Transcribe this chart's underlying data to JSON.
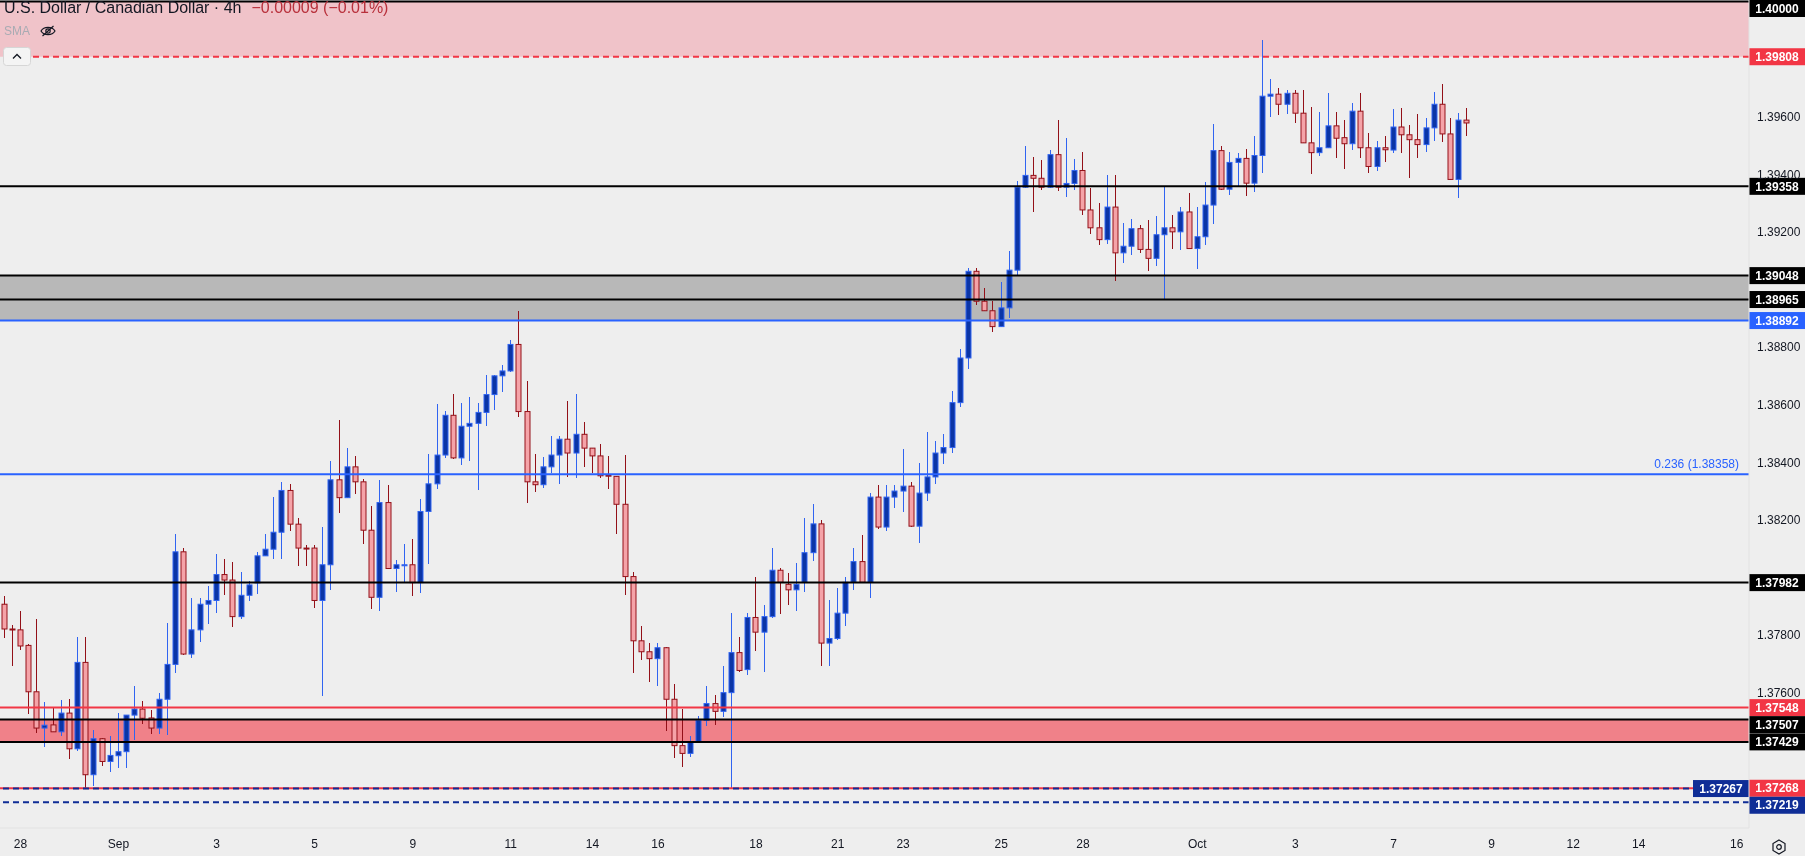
{
  "chart_data": {
    "type": "candlestick",
    "title": "U.S. Dollar / Canadian Dollar · 4h",
    "subtitle": "−0.00009 (−0.01%)",
    "annotations": [
      "SMA",
      {
        "text": "0.236 (1.38358)",
        "y": 1.38358
      }
    ],
    "categories": [
      null,
      null,
      "28",
      null,
      null,
      null,
      null,
      null,
      null,
      null,
      null,
      null,
      null,
      null,
      "Sep",
      null,
      null,
      null,
      null,
      null,
      null,
      null,
      null,
      null,
      null,
      null,
      "3",
      null,
      null,
      null,
      null,
      null,
      null,
      null,
      null,
      null,
      null,
      null,
      "5",
      null,
      null,
      null,
      null,
      null,
      null,
      null,
      null,
      null,
      null,
      null,
      "9",
      null,
      null,
      null,
      null,
      null,
      null,
      null,
      null,
      null,
      null,
      null,
      "11",
      null,
      null,
      null,
      null,
      null,
      null,
      null,
      null,
      null,
      "14",
      null,
      null,
      null,
      null,
      null,
      null,
      null,
      "16",
      null,
      null,
      null,
      null,
      null,
      null,
      null,
      null,
      null,
      null,
      null,
      "18",
      null,
      null,
      null,
      null,
      null,
      null,
      null,
      null,
      null,
      "21",
      null,
      null,
      null,
      null,
      null,
      null,
      null,
      "23",
      null,
      null,
      null,
      null,
      null,
      null,
      null,
      null,
      null,
      null,
      null,
      "25",
      null,
      null,
      null,
      null,
      null,
      null,
      null,
      null,
      null,
      "28",
      null,
      null,
      null,
      null,
      null,
      null,
      null,
      null,
      null,
      null,
      null,
      null,
      null,
      "Oct",
      null,
      null,
      null,
      null,
      null,
      null,
      null,
      null,
      null,
      null,
      null,
      "3",
      null,
      null,
      null,
      null,
      null,
      null,
      null,
      null,
      null,
      null,
      null,
      "7",
      null,
      null,
      null,
      null,
      null,
      null,
      null,
      null,
      null,
      null,
      null,
      "9",
      null,
      null,
      null,
      null,
      null,
      null,
      null,
      null,
      null,
      "12",
      null,
      null,
      null,
      null,
      null,
      null,
      null,
      "14",
      null,
      null,
      null,
      null,
      null,
      null,
      null,
      null,
      null,
      null,
      null,
      "16",
      null
    ],
    "ohlc": [
      [
        1.37907,
        1.37935,
        1.37792,
        1.37821
      ],
      [
        1.37821,
        1.37832,
        1.37696,
        1.37819
      ],
      [
        1.37818,
        1.3788,
        1.3775,
        1.37762
      ],
      [
        1.37764,
        1.37768,
        1.37529,
        1.37603
      ],
      [
        1.37603,
        1.37853,
        1.37463,
        1.37477
      ],
      [
        1.37477,
        1.37565,
        1.37414,
        1.37487
      ],
      [
        1.37488,
        1.37543,
        1.37464,
        1.37464
      ],
      [
        1.37464,
        1.37572,
        1.37452,
        1.37529
      ],
      [
        1.37529,
        1.37575,
        1.37373,
        1.37405
      ],
      [
        1.37405,
        1.37792,
        1.37401,
        1.37705
      ],
      [
        1.37705,
        1.37792,
        1.37267,
        1.37315
      ],
      [
        1.37315,
        1.37468,
        1.37277,
        1.3744
      ],
      [
        1.3744,
        1.3744,
        1.37349,
        1.37361
      ],
      [
        1.37361,
        1.37449,
        1.37328,
        1.37382
      ],
      [
        1.37381,
        1.37527,
        1.37342,
        1.37395
      ],
      [
        1.37395,
        1.37522,
        1.37339,
        1.37522
      ],
      [
        1.37522,
        1.3762,
        1.37438,
        1.37543
      ],
      [
        1.37543,
        1.37568,
        1.37493,
        1.37511
      ],
      [
        1.37512,
        1.37537,
        1.3746,
        1.37477
      ],
      [
        1.37477,
        1.37596,
        1.3746,
        1.37577
      ],
      [
        1.37577,
        1.37839,
        1.37454,
        1.37698
      ],
      [
        1.37698,
        1.38148,
        1.37672,
        1.38089
      ],
      [
        1.38089,
        1.38099,
        1.37734,
        1.37734
      ],
      [
        1.37734,
        1.37925,
        1.37724,
        1.37818
      ],
      [
        1.37818,
        1.37925,
        1.37778,
        1.37907
      ],
      [
        1.37907,
        1.37969,
        1.3784,
        1.3792
      ],
      [
        1.3792,
        1.3808,
        1.3788,
        1.3801
      ],
      [
        1.3801,
        1.38063,
        1.3794,
        1.37991
      ],
      [
        1.37991,
        1.38051,
        1.37829,
        1.37864
      ],
      [
        1.37864,
        1.38018,
        1.37857,
        1.37938
      ],
      [
        1.37938,
        1.37986,
        1.37919,
        1.37974
      ],
      [
        1.37981,
        1.38087,
        1.37945,
        1.38075
      ],
      [
        1.38075,
        1.38148,
        1.38075,
        1.38098
      ],
      [
        1.38098,
        1.38278,
        1.38067,
        1.38157
      ],
      [
        1.38157,
        1.3833,
        1.38067,
        1.38302
      ],
      [
        1.38302,
        1.38323,
        1.38164,
        1.38185
      ],
      [
        1.38185,
        1.38206,
        1.38042,
        1.38102
      ],
      [
        1.38102,
        1.3811,
        1.38042,
        1.381
      ],
      [
        1.38102,
        1.3811,
        1.37897,
        1.3792
      ],
      [
        1.3792,
        1.38172,
        1.3759,
        1.38044
      ],
      [
        1.38044,
        1.38402,
        1.3796,
        1.38339
      ],
      [
        1.38339,
        1.38543,
        1.38227,
        1.38277
      ],
      [
        1.38277,
        1.38447,
        1.38277,
        1.38384
      ],
      [
        1.38384,
        1.38419,
        1.38293,
        1.38332
      ],
      [
        1.38332,
        1.38339,
        1.38118,
        1.38164
      ],
      [
        1.38164,
        1.38247,
        1.37892,
        1.37931
      ],
      [
        1.37931,
        1.38336,
        1.37885,
        1.3826
      ],
      [
        1.3826,
        1.38319,
        1.38031,
        1.38031
      ],
      [
        1.38031,
        1.3806,
        1.37953,
        1.38044
      ],
      [
        1.38043,
        1.38114,
        1.37984,
        1.38044
      ],
      [
        1.38044,
        1.38131,
        1.37936,
        1.37982
      ],
      [
        1.37982,
        1.38271,
        1.37947,
        1.38229
      ],
      [
        1.38229,
        1.38426,
        1.38049,
        1.38325
      ],
      [
        1.38325,
        1.38601,
        1.3831,
        1.38425
      ],
      [
        1.38425,
        1.38577,
        1.38418,
        1.38563
      ],
      [
        1.38563,
        1.38636,
        1.38415,
        1.38415
      ],
      [
        1.38415,
        1.38605,
        1.38393,
        1.38525
      ],
      [
        1.38525,
        1.38626,
        1.38407,
        1.38535
      ],
      [
        1.38535,
        1.38605,
        1.38307,
        1.38573
      ],
      [
        1.38573,
        1.38701,
        1.38527,
        1.38635
      ],
      [
        1.38635,
        1.387,
        1.38585,
        1.387
      ],
      [
        1.387,
        1.38735,
        1.38647,
        1.38717
      ],
      [
        1.38717,
        1.38822,
        1.38717,
        1.38809
      ],
      [
        1.38809,
        1.38924,
        1.38558,
        1.38576
      ],
      [
        1.38576,
        1.38679,
        1.38262,
        1.38332
      ],
      [
        1.38332,
        1.38428,
        1.383,
        1.38322
      ],
      [
        1.38322,
        1.38416,
        1.38311,
        1.38384
      ],
      [
        1.38384,
        1.38488,
        1.38364,
        1.38425
      ],
      [
        1.38425,
        1.3849,
        1.38327,
        1.3848
      ],
      [
        1.3848,
        1.38612,
        1.38351,
        1.38432
      ],
      [
        1.38432,
        1.38636,
        1.38349,
        1.38497
      ],
      [
        1.38497,
        1.38538,
        1.38386,
        1.38449
      ],
      [
        1.38449,
        1.38449,
        1.38365,
        1.38422
      ],
      [
        1.38422,
        1.3846,
        1.38346,
        1.38353
      ],
      [
        1.38355,
        1.38419,
        1.3831,
        1.38352
      ],
      [
        1.38351,
        1.38351,
        1.38152,
        1.38254
      ],
      [
        1.38254,
        1.38423,
        1.3794,
        1.38003
      ],
      [
        1.38003,
        1.38018,
        1.37672,
        1.3778
      ],
      [
        1.3778,
        1.37829,
        1.37717,
        1.37742
      ],
      [
        1.37742,
        1.37771,
        1.37638,
        1.37718
      ],
      [
        1.37718,
        1.37771,
        1.37624,
        1.37756
      ],
      [
        1.37756,
        1.37756,
        1.3747,
        1.37577
      ],
      [
        1.37577,
        1.37628,
        1.37375,
        1.37416
      ],
      [
        1.37416,
        1.37542,
        1.37344,
        1.37389
      ],
      [
        1.37389,
        1.37448,
        1.37378,
        1.3743
      ],
      [
        1.3743,
        1.37516,
        1.3743,
        1.37504
      ],
      [
        1.37504,
        1.3762,
        1.37486,
        1.37562
      ],
      [
        1.37562,
        1.3759,
        1.3749,
        1.37535
      ],
      [
        1.37535,
        1.37692,
        1.37517,
        1.376
      ],
      [
        1.376,
        1.37873,
        1.37268,
        1.37739
      ],
      [
        1.37739,
        1.37792,
        1.37673,
        1.37677
      ],
      [
        1.3768,
        1.37876,
        1.37662,
        1.37861
      ],
      [
        1.37861,
        1.37999,
        1.37746,
        1.3781
      ],
      [
        1.3781,
        1.37902,
        1.37673,
        1.37864
      ],
      [
        1.37864,
        1.38101,
        1.37861,
        1.38025
      ],
      [
        1.38025,
        1.38032,
        1.37876,
        1.37983
      ],
      [
        1.37976,
        1.38012,
        1.37907,
        1.37957
      ],
      [
        1.37957,
        1.38049,
        1.37887,
        1.37976
      ],
      [
        1.37983,
        1.38205,
        1.37953,
        1.38086
      ],
      [
        1.38086,
        1.38254,
        1.3806,
        1.38186
      ],
      [
        1.38186,
        1.38198,
        1.37693,
        1.37772
      ],
      [
        1.37772,
        1.37919,
        1.37693,
        1.37788
      ],
      [
        1.37788,
        1.3796,
        1.37784,
        1.37876
      ],
      [
        1.37876,
        1.37999,
        1.37835,
        1.37983
      ],
      [
        1.37983,
        1.38101,
        1.3796,
        1.38055
      ],
      [
        1.38055,
        1.38144,
        1.37983,
        1.37983
      ],
      [
        1.37983,
        1.3829,
        1.3793,
        1.38279
      ],
      [
        1.38279,
        1.3832,
        1.38172,
        1.38175
      ],
      [
        1.38175,
        1.3832,
        1.38162,
        1.38279
      ],
      [
        1.38279,
        1.3832,
        1.38243,
        1.383
      ],
      [
        1.383,
        1.38443,
        1.38231,
        1.38317
      ],
      [
        1.38317,
        1.38328,
        1.38178,
        1.38178
      ],
      [
        1.38178,
        1.38397,
        1.38121,
        1.38293
      ],
      [
        1.38293,
        1.38503,
        1.38266,
        1.38349
      ],
      [
        1.38349,
        1.38471,
        1.38328,
        1.38432
      ],
      [
        1.38432,
        1.38497,
        1.38397,
        1.38451
      ],
      [
        1.38451,
        1.38647,
        1.38435,
        1.38607
      ],
      [
        1.38607,
        1.38792,
        1.38593,
        1.38762
      ],
      [
        1.38762,
        1.39071,
        1.38726,
        1.39063
      ],
      [
        1.39063,
        1.39071,
        1.38949,
        1.38959
      ],
      [
        1.38959,
        1.39002,
        1.38926,
        1.38926
      ],
      [
        1.38926,
        1.38958,
        1.38853,
        1.38871
      ],
      [
        1.38871,
        1.39024,
        1.38871,
        1.38936
      ],
      [
        1.38936,
        1.3913,
        1.38902,
        1.39067
      ],
      [
        1.39067,
        1.39374,
        1.39048,
        1.39355
      ],
      [
        1.39355,
        1.39497,
        1.39355,
        1.39396
      ],
      [
        1.39396,
        1.39459,
        1.39272,
        1.39386
      ],
      [
        1.39386,
        1.39449,
        1.39348,
        1.39355
      ],
      [
        1.39355,
        1.39483,
        1.39355,
        1.39468
      ],
      [
        1.39468,
        1.39586,
        1.39343,
        1.39355
      ],
      [
        1.39355,
        1.39524,
        1.39323,
        1.39368
      ],
      [
        1.39368,
        1.39451,
        1.39348,
        1.39413
      ],
      [
        1.39413,
        1.39476,
        1.39261,
        1.39276
      ],
      [
        1.39276,
        1.39349,
        1.39196,
        1.39214
      ],
      [
        1.39214,
        1.39297,
        1.39158,
        1.39173
      ],
      [
        1.39173,
        1.39397,
        1.39161,
        1.39286
      ],
      [
        1.39286,
        1.39394,
        1.39033,
        1.39127
      ],
      [
        1.39127,
        1.39229,
        1.39093,
        1.3915
      ],
      [
        1.3915,
        1.39243,
        1.3912,
        1.39211
      ],
      [
        1.39211,
        1.39222,
        1.3913,
        1.39139
      ],
      [
        1.39139,
        1.39239,
        1.39065,
        1.39108
      ],
      [
        1.39108,
        1.39253,
        1.39083,
        1.3919
      ],
      [
        1.3919,
        1.39358,
        1.38965,
        1.39214
      ],
      [
        1.39214,
        1.39256,
        1.39142,
        1.392
      ],
      [
        1.392,
        1.39284,
        1.39139,
        1.39269
      ],
      [
        1.39269,
        1.39332,
        1.39142,
        1.39142
      ],
      [
        1.39142,
        1.39284,
        1.39072,
        1.39183
      ],
      [
        1.39183,
        1.3937,
        1.39155,
        1.39293
      ],
      [
        1.39293,
        1.39572,
        1.3923,
        1.39482
      ],
      [
        1.39482,
        1.39497,
        1.39348,
        1.39348
      ],
      [
        1.39348,
        1.39476,
        1.3933,
        1.39441
      ],
      [
        1.39441,
        1.39473,
        1.39359,
        1.39455
      ],
      [
        1.39455,
        1.39486,
        1.39326,
        1.39369
      ],
      [
        1.39369,
        1.39531,
        1.3934,
        1.39465
      ],
      [
        1.39465,
        1.39864,
        1.39405,
        1.39671
      ],
      [
        1.39671,
        1.39727,
        1.39601,
        1.39678
      ],
      [
        1.39678,
        1.39699,
        1.39608,
        1.39643
      ],
      [
        1.39643,
        1.39691,
        1.39611,
        1.39681
      ],
      [
        1.39681,
        1.39691,
        1.3958,
        1.39612
      ],
      [
        1.39612,
        1.39692,
        1.39509,
        1.39509
      ],
      [
        1.39509,
        1.39631,
        1.39402,
        1.39475
      ],
      [
        1.39475,
        1.39614,
        1.39467,
        1.39492
      ],
      [
        1.39492,
        1.39679,
        1.39492,
        1.39568
      ],
      [
        1.39568,
        1.39614,
        1.39457,
        1.39525
      ],
      [
        1.39527,
        1.39586,
        1.39419,
        1.39506
      ],
      [
        1.39506,
        1.39644,
        1.39487,
        1.39619
      ],
      [
        1.39619,
        1.39679,
        1.3946,
        1.39492
      ],
      [
        1.39492,
        1.39541,
        1.39405,
        1.39427
      ],
      [
        1.39427,
        1.39514,
        1.39415,
        1.39492
      ],
      [
        1.39492,
        1.39531,
        1.39443,
        1.39485
      ],
      [
        1.39484,
        1.39623,
        1.39477,
        1.39564
      ],
      [
        1.39564,
        1.39627,
        1.39477,
        1.39537
      ],
      [
        1.39537,
        1.39569,
        1.39388,
        1.3952
      ],
      [
        1.3952,
        1.39606,
        1.3946,
        1.39503
      ],
      [
        1.39503,
        1.39593,
        1.39481,
        1.39561
      ],
      [
        1.39561,
        1.39685,
        1.39518,
        1.39643
      ],
      [
        1.39643,
        1.3971,
        1.39515,
        1.3954
      ],
      [
        1.3954,
        1.39593,
        1.39382,
        1.39382
      ],
      [
        1.39382,
        1.3961,
        1.39319,
        1.39588
      ],
      [
        1.39588,
        1.39627,
        1.39536,
        1.39578
      ],
      null,
      null,
      null,
      null,
      null,
      null,
      null,
      null,
      null,
      null,
      null,
      null,
      null,
      null,
      null,
      null,
      null,
      null,
      null,
      null,
      null,
      null,
      null,
      null,
      null,
      null,
      null,
      null,
      null,
      null,
      null,
      null,
      null,
      null
    ],
    "colors": [
      "#f5a3a8",
      "#f5a3a8",
      "#f5a3a8",
      "#f5a3a8",
      "#f5a3a8",
      "#0b35a6",
      "#f5a3a8",
      "#0b35a6",
      "#f5a3a8",
      "#0b35a6",
      "#f5a3a8",
      "#0b35a6",
      "#f5a3a8",
      "#0b35a6",
      "#0b35a6",
      "#0b35a6",
      "#0b35a6",
      "#f5a3a8",
      "#f5a3a8",
      "#0b35a6",
      "#0b35a6",
      "#0b35a6",
      "#f5a3a8",
      "#0b35a6",
      "#0b35a6",
      "#0b35a6",
      "#0b35a6",
      "#f5a3a8",
      "#f5a3a8",
      "#0b35a6",
      "#0b35a6",
      "#0b35a6",
      "#0b35a6",
      "#0b35a6",
      "#0b35a6",
      "#f5a3a8",
      "#f5a3a8",
      "#f5a3a8",
      "#f5a3a8",
      "#0b35a6",
      "#0b35a6",
      "#f5a3a8",
      "#0b35a6",
      "#f5a3a8",
      "#f5a3a8",
      "#f5a3a8",
      "#0b35a6",
      "#f5a3a8",
      "#0b35a6",
      "#0b35a6",
      "#f5a3a8",
      "#0b35a6",
      "#0b35a6",
      "#0b35a6",
      "#0b35a6",
      "#f5a3a8",
      "#0b35a6",
      "#0b35a6",
      "#0b35a6",
      "#0b35a6",
      "#0b35a6",
      "#0b35a6",
      "#0b35a6",
      "#f5a3a8",
      "#f5a3a8",
      "#f5a3a8",
      "#0b35a6",
      "#0b35a6",
      "#0b35a6",
      "#f5a3a8",
      "#0b35a6",
      "#f5a3a8",
      "#f5a3a8",
      "#f5a3a8",
      "#f5a3a8",
      "#f5a3a8",
      "#f5a3a8",
      "#f5a3a8",
      "#f5a3a8",
      "#f5a3a8",
      "#0b35a6",
      "#f5a3a8",
      "#f5a3a8",
      "#f5a3a8",
      "#0b35a6",
      "#0b35a6",
      "#0b35a6",
      "#f5a3a8",
      "#0b35a6",
      "#0b35a6",
      "#f5a3a8",
      "#0b35a6",
      "#f5a3a8",
      "#0b35a6",
      "#0b35a6",
      "#f5a3a8",
      "#f5a3a8",
      "#0b35a6",
      "#0b35a6",
      "#0b35a6",
      "#f5a3a8",
      "#0b35a6",
      "#0b35a6",
      "#0b35a6",
      "#0b35a6",
      "#f5a3a8",
      "#0b35a6",
      "#f5a3a8",
      "#0b35a6",
      "#0b35a6",
      "#0b35a6",
      "#f5a3a8",
      "#0b35a6",
      "#0b35a6",
      "#0b35a6",
      "#0b35a6",
      "#0b35a6",
      "#0b35a6",
      "#0b35a6",
      "#f5a3a8",
      "#f5a3a8",
      "#f5a3a8",
      "#0b35a6",
      "#0b35a6",
      "#0b35a6",
      "#0b35a6",
      "#f5a3a8",
      "#f5a3a8",
      "#0b35a6",
      "#f5a3a8",
      "#0b35a6",
      "#0b35a6",
      "#f5a3a8",
      "#f5a3a8",
      "#f5a3a8",
      "#0b35a6",
      "#f5a3a8",
      "#0b35a6",
      "#0b35a6",
      "#f5a3a8",
      "#f5a3a8",
      "#0b35a6",
      "#0b35a6",
      "#f5a3a8",
      "#0b35a6",
      "#f5a3a8",
      "#0b35a6",
      "#0b35a6",
      "#0b35a6",
      "#f5a3a8",
      "#0b35a6",
      "#0b35a6",
      "#f5a3a8",
      "#0b35a6",
      "#0b35a6",
      "#0b35a6",
      "#f5a3a8",
      "#0b35a6",
      "#f5a3a8",
      "#f5a3a8",
      "#f5a3a8",
      "#0b35a6",
      "#0b35a6",
      "#f5a3a8",
      "#f5a3a8",
      "#0b35a6",
      "#f5a3a8",
      "#f5a3a8",
      "#0b35a6",
      "#f5a3a8",
      "#0b35a6",
      "#f5a3a8",
      "#f5a3a8",
      "#f5a3a8",
      "#0b35a6",
      "#0b35a6",
      "#f5a3a8",
      "#f5a3a8",
      "#0b35a6",
      "#f5a3a8",
      null,
      null,
      null,
      null,
      null,
      null,
      null,
      null,
      null,
      null,
      null,
      null,
      null,
      null,
      null,
      null,
      null,
      null,
      null,
      null,
      null,
      null,
      null,
      null,
      null,
      null,
      null,
      null,
      null,
      null,
      null,
      null,
      null,
      null
    ],
    "ylim": [
      1.3713,
      1.40005
    ],
    "yticks": [
      {
        "value": 1.376,
        "label": "1.37600"
      },
      {
        "value": 1.378,
        "label": "1.37800"
      },
      {
        "value": 1.382,
        "label": "1.38200"
      },
      {
        "value": 1.384,
        "label": "1.38400"
      },
      {
        "value": 1.386,
        "label": "1.38600"
      },
      {
        "value": 1.388,
        "label": "1.38800"
      },
      {
        "value": 1.392,
        "label": "1.39200"
      },
      {
        "value": 1.394,
        "label": "1.39400"
      },
      {
        "value": 1.396,
        "label": "1.39600"
      }
    ],
    "ref_lines": [
      {
        "axis": "y",
        "value": 1.4,
        "label": "1.40000",
        "color": "#000000"
      },
      {
        "axis": "y",
        "value": 1.39808,
        "label": "1.39808",
        "color": "#f23645",
        "line_style": "dashed"
      },
      {
        "axis": "y",
        "value": 1.39358,
        "label": "1.39358",
        "color": "#000000"
      },
      {
        "axis": "y",
        "value": 1.39048,
        "label": "1.39048",
        "color": "#000000"
      },
      {
        "axis": "y",
        "value": 1.38965,
        "label": "1.38965",
        "color": "#000000"
      },
      {
        "axis": "y",
        "value": 1.38892,
        "label": "1.38892",
        "color": "#2962ff"
      },
      {
        "axis": "y",
        "value": 1.38358,
        "color": "#2962ff"
      },
      {
        "axis": "y",
        "value": 1.37982,
        "label": "1.37982",
        "color": "#000000"
      },
      {
        "axis": "y",
        "value": 1.37548,
        "label": "1.37548",
        "color": "#f23645"
      },
      {
        "axis": "y",
        "value": 1.37507,
        "label": "1.37507",
        "color": "#000000"
      },
      {
        "axis": "y",
        "value": 1.37429,
        "label": "1.37429",
        "color": "#000000"
      },
      {
        "axis": "y",
        "value": 1.37268,
        "label": "1.37268",
        "color": "#f23645"
      },
      {
        "axis": "y",
        "value": 1.37267,
        "label": "1.37267",
        "color": "#0f2d96",
        "line_style": "dashed"
      },
      {
        "axis": "y",
        "value": 1.37219,
        "label": "1.37219",
        "color": "#0f2d96",
        "line_style": "dashed"
      }
    ],
    "bands": [
      {
        "axis": "y",
        "from": 1.39808,
        "to": 1.4,
        "color": "#f0c3c9"
      },
      {
        "axis": "y",
        "from": 1.38892,
        "to": 1.39048,
        "color": "#b8b8b8"
      },
      {
        "axis": "y",
        "from": 1.37429,
        "to": 1.37507,
        "color": "#f08189"
      }
    ]
  }
}
